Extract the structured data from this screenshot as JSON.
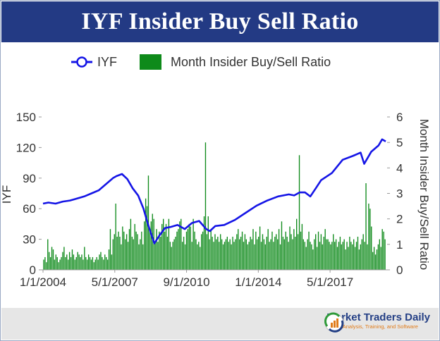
{
  "title": "IYF Insider Buy Sell Ratio",
  "footer": {
    "brand": "Market Traders Daily",
    "tagline": "News, Analysis, Training, and Software"
  },
  "colors": {
    "title_bg": "#233a84",
    "line": "#1515e6",
    "bar": "#0e8a1a",
    "footer_bg": "#e6e6e6"
  },
  "chart_data": {
    "type": "bar+line",
    "x_ticks": [
      "1/1/2004",
      "5/1/2007",
      "9/1/2010",
      "1/1/2014",
      "5/1/2017"
    ],
    "x_start": "2004-01",
    "x_end": "2019-12",
    "ylabel_left": "IYF",
    "ylabel_right": "Month Insider Buy/Sell Ratio",
    "ylim_left": [
      0,
      150
    ],
    "yticks_left": [
      0,
      30,
      60,
      90,
      120,
      150
    ],
    "ylim_right": [
      0,
      6
    ],
    "yticks_right": [
      0,
      1,
      2,
      3,
      4,
      5,
      6
    ],
    "legend": {
      "position": "top",
      "entries": [
        "IYF",
        "Month Insider Buy/Sell Ratio"
      ]
    },
    "grid": false,
    "series": [
      {
        "name": "IYF",
        "type": "line",
        "axis": "left",
        "points": [
          [
            "2004-01",
            65
          ],
          [
            "2004-04",
            66
          ],
          [
            "2004-08",
            65
          ],
          [
            "2004-12",
            67
          ],
          [
            "2005-04",
            68
          ],
          [
            "2005-08",
            70
          ],
          [
            "2005-12",
            72
          ],
          [
            "2006-04",
            75
          ],
          [
            "2006-08",
            78
          ],
          [
            "2006-12",
            84
          ],
          [
            "2007-04",
            90
          ],
          [
            "2007-06",
            92
          ],
          [
            "2007-09",
            94
          ],
          [
            "2007-12",
            89
          ],
          [
            "2008-03",
            80
          ],
          [
            "2008-06",
            73
          ],
          [
            "2008-09",
            60
          ],
          [
            "2008-12",
            42
          ],
          [
            "2009-03",
            26
          ],
          [
            "2009-06",
            34
          ],
          [
            "2009-09",
            41
          ],
          [
            "2009-12",
            42
          ],
          [
            "2010-04",
            44
          ],
          [
            "2010-08",
            40
          ],
          [
            "2010-12",
            46
          ],
          [
            "2011-04",
            48
          ],
          [
            "2011-08",
            40
          ],
          [
            "2011-10",
            38
          ],
          [
            "2012-01",
            43
          ],
          [
            "2012-06",
            44
          ],
          [
            "2012-12",
            49
          ],
          [
            "2013-06",
            56
          ],
          [
            "2013-12",
            63
          ],
          [
            "2014-06",
            68
          ],
          [
            "2014-12",
            72
          ],
          [
            "2015-06",
            74
          ],
          [
            "2015-09",
            73
          ],
          [
            "2015-12",
            76
          ],
          [
            "2016-03",
            76
          ],
          [
            "2016-06",
            72
          ],
          [
            "2016-09",
            80
          ],
          [
            "2016-12",
            88
          ],
          [
            "2017-06",
            95
          ],
          [
            "2017-12",
            108
          ],
          [
            "2018-06",
            112
          ],
          [
            "2018-10",
            115
          ],
          [
            "2018-12",
            104
          ],
          [
            "2019-04",
            116
          ],
          [
            "2019-08",
            122
          ],
          [
            "2019-10",
            128
          ],
          [
            "2019-12",
            126
          ]
        ]
      },
      {
        "name": "Month Insider Buy/Sell Ratio",
        "type": "bar",
        "axis": "right",
        "values": [
          0.4,
          0.5,
          0.3,
          1.2,
          0.7,
          0.5,
          0.9,
          0.8,
          0.4,
          0.6,
          0.5,
          0.3,
          0.4,
          0.5,
          0.7,
          0.9,
          0.5,
          0.6,
          0.4,
          0.7,
          0.5,
          0.8,
          0.6,
          0.4,
          0.5,
          0.7,
          0.6,
          0.5,
          0.6,
          0.4,
          0.9,
          0.5,
          0.4,
          0.6,
          0.5,
          0.4,
          0.5,
          0.3,
          0.4,
          0.5,
          0.4,
          0.6,
          0.7,
          0.5,
          0.4,
          0.6,
          0.5,
          0.4,
          0.8,
          1.6,
          0.6,
          1.2,
          1.4,
          2.6,
          1.3,
          1.5,
          1.3,
          1.0,
          1.7,
          1.5,
          1.2,
          1.4,
          1.1,
          1.6,
          2.0,
          1.3,
          1.2,
          1.8,
          1.5,
          1.4,
          1.0,
          1.2,
          1.5,
          1.0,
          1.9,
          2.8,
          2.5,
          3.7,
          1.6,
          1.9,
          2.2,
          2.0,
          1.1,
          1.6,
          1.1,
          1.5,
          1.3,
          1.8,
          2.0,
          1.5,
          1.8,
          1.3,
          2.0,
          1.1,
          0.9,
          1.1,
          1.2,
          1.3,
          1.5,
          1.6,
          1.9,
          2.0,
          1.1,
          1.3,
          1.0,
          1.5,
          1.6,
          1.8,
          1.7,
          1.1,
          2.0,
          1.5,
          1.2,
          1.0,
          1.1,
          0.9,
          1.4,
          1.5,
          2.1,
          5.0,
          1.4,
          2.1,
          1.2,
          1.6,
          1.3,
          1.1,
          1.4,
          1.2,
          1.3,
          1.1,
          1.4,
          1.2,
          1.0,
          1.1,
          1.2,
          1.3,
          1.1,
          1.2,
          1.0,
          1.3,
          1.1,
          1.2,
          1.4,
          1.6,
          1.2,
          1.3,
          1.5,
          1.1,
          1.4,
          1.2,
          1.0,
          1.1,
          1.3,
          1.2,
          1.6,
          1.0,
          1.5,
          1.2,
          1.3,
          1.7,
          1.1,
          1.4,
          1.2,
          1.0,
          1.3,
          1.6,
          1.1,
          1.2,
          1.5,
          1.1,
          1.3,
          1.4,
          1.2,
          1.6,
          1.0,
          1.9,
          1.3,
          1.2,
          1.5,
          1.3,
          1.1,
          1.7,
          1.4,
          1.2,
          1.6,
          1.3,
          2.0,
          1.4,
          4.5,
          1.5,
          1.8,
          1.2,
          1.1,
          0.9,
          1.2,
          1.5,
          1.1,
          1.0,
          0.8,
          1.2,
          1.4,
          0.9,
          1.5,
          1.1,
          1.4,
          1.0,
          1.3,
          1.6,
          1.2,
          1.2,
          1.1,
          1.0,
          1.1,
          1.4,
          1.1,
          1.2,
          0.9,
          1.1,
          1.3,
          1.0,
          1.1,
          1.2,
          0.8,
          1.1,
          0.9,
          1.3,
          1.1,
          1.0,
          1.2,
          0.9,
          1.1,
          1.3,
          0.8,
          1.0,
          1.2,
          1.4,
          1.1,
          3.4,
          1.0,
          2.6,
          2.4,
          1.7,
          0.7,
          0.9,
          0.6,
          0.8,
          1.0,
          1.2,
          0.9,
          1.6,
          1.5,
          1.2
        ]
      }
    ]
  }
}
